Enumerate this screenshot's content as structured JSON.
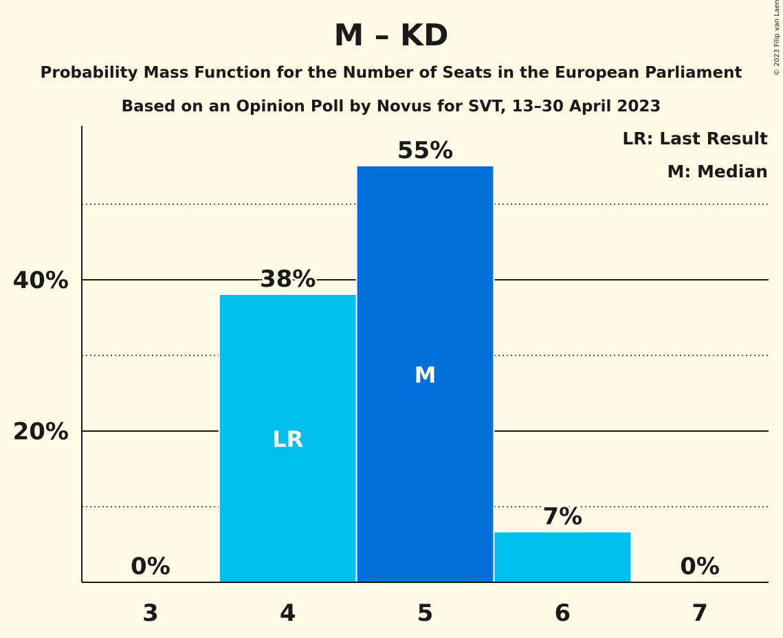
{
  "copyright": "© 2023 Filip van Laenen",
  "chart_data": {
    "type": "bar",
    "title": "M – KD",
    "subtitle_1": "Probability Mass Function for the Number of Seats in the European Parliament",
    "subtitle_2": "Based on an Opinion Poll by Novus for SVT, 13–30 April 2023",
    "categories": [
      "3",
      "4",
      "5",
      "6",
      "7"
    ],
    "values": [
      0,
      38,
      55,
      6.6,
      0
    ],
    "value_labels": [
      "0%",
      "38%",
      "55%",
      "7%",
      "0%"
    ],
    "bar_markers": [
      "",
      "LR",
      "M",
      "",
      ""
    ],
    "bar_colors": [
      "#00bfee",
      "#00bfee",
      "#006fdc",
      "#00bfee",
      "#00bfee"
    ],
    "ylim": [
      0,
      60
    ],
    "y_ticks_major": [
      20,
      40
    ],
    "y_tick_labels": [
      "20%",
      "40%"
    ],
    "y_gridlines_minor": [
      10,
      30,
      50
    ],
    "legend": {
      "placement": "top-right",
      "items": [
        "LR: Last Result",
        "M: Median"
      ]
    },
    "colors": {
      "background": "#fff9e5",
      "text": "#1a1a1a",
      "marker_text": "#fff9e5"
    }
  }
}
